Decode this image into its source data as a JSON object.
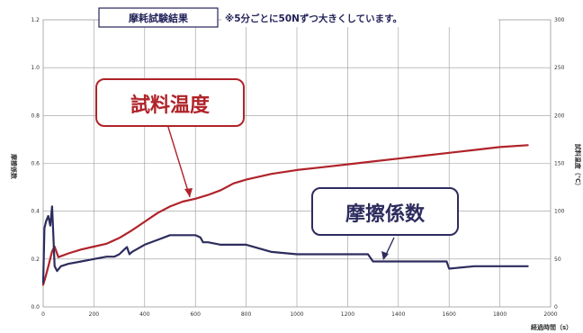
{
  "chart_data": {
    "type": "line",
    "title_box": "摩耗試験結果",
    "title_note": "※5分ごとに50Nずつ大きくしています。",
    "xlabel": "経過時間（s）",
    "ylabel_left": "摩擦係数",
    "ylabel_right": "試料温度（℃）",
    "xlim": [
      0,
      2000
    ],
    "ylim_left": [
      0,
      1.2
    ],
    "ylim_right": [
      0,
      300
    ],
    "x_ticks": [
      "0",
      "200",
      "400",
      "600",
      "800",
      "1000",
      "1200",
      "1400",
      "1600",
      "1800",
      "2000"
    ],
    "y_ticks_left": [
      "0.0",
      "0.2",
      "0.4",
      "0.6",
      "0.8",
      "1.0",
      "1.2"
    ],
    "y_ticks_right": [
      "0",
      "50",
      "100",
      "150",
      "200",
      "250",
      "300"
    ],
    "grid": true,
    "series": [
      {
        "name": "試料温度",
        "axis": "right",
        "color": "#b0232a",
        "x": [
          0,
          10,
          20,
          35,
          45,
          60,
          100,
          150,
          200,
          250,
          300,
          350,
          400,
          450,
          500,
          550,
          600,
          650,
          700,
          750,
          800,
          900,
          1000,
          1100,
          1200,
          1300,
          1400,
          1500,
          1600,
          1700,
          1800,
          1910
        ],
        "y": [
          23,
          32,
          42,
          58,
          63,
          52,
          56,
          60,
          63,
          66,
          72,
          80,
          89,
          98,
          105,
          110,
          113,
          117,
          122,
          129,
          133,
          139,
          143,
          146,
          149,
          152,
          155,
          158,
          161,
          164,
          167,
          169
        ]
      },
      {
        "name": "摩擦係数",
        "axis": "left",
        "color": "#2d2c5e",
        "x": [
          0,
          5,
          12,
          20,
          28,
          35,
          40,
          45,
          55,
          70,
          100,
          150,
          200,
          250,
          280,
          300,
          320,
          330,
          340,
          350,
          400,
          450,
          500,
          550,
          600,
          620,
          630,
          650,
          700,
          750,
          800,
          900,
          1000,
          1100,
          1200,
          1280,
          1300,
          1400,
          1500,
          1590,
          1600,
          1700,
          1800,
          1910
        ],
        "y": [
          0.1,
          0.33,
          0.36,
          0.38,
          0.34,
          0.42,
          0.3,
          0.17,
          0.15,
          0.17,
          0.18,
          0.19,
          0.2,
          0.21,
          0.21,
          0.22,
          0.24,
          0.25,
          0.22,
          0.23,
          0.26,
          0.28,
          0.3,
          0.3,
          0.3,
          0.29,
          0.27,
          0.27,
          0.26,
          0.26,
          0.26,
          0.23,
          0.22,
          0.22,
          0.22,
          0.22,
          0.19,
          0.19,
          0.19,
          0.19,
          0.16,
          0.17,
          0.17,
          0.17
        ]
      }
    ],
    "callouts": {
      "temperature": "試料温度",
      "friction": "摩擦係数"
    }
  }
}
